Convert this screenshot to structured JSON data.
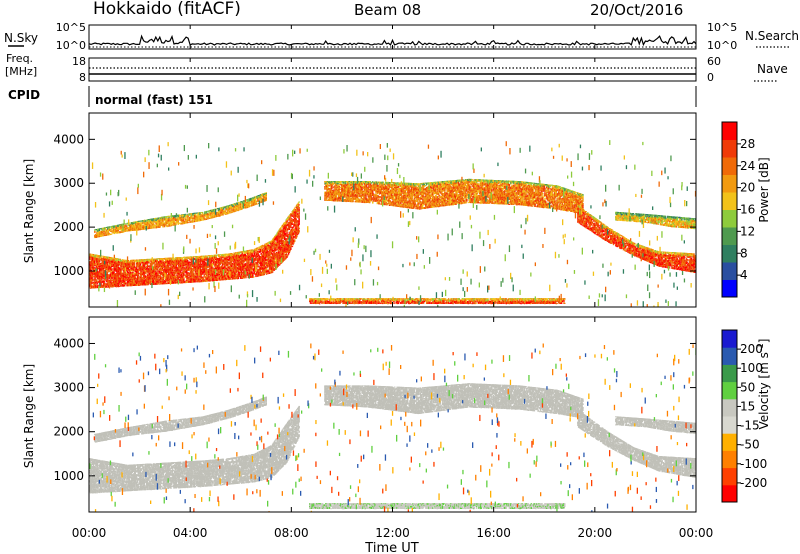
{
  "header": {
    "station": "Hokkaido (fitACF)",
    "beam": "Beam 08",
    "date": "20/Oct/2016"
  },
  "noise_panel": {
    "left_label": "N.Sky",
    "left_ticks": [
      "10^5",
      "10^0"
    ],
    "right_ticks": [
      "10^5",
      "10^0"
    ],
    "right_label": "N.Search"
  },
  "freq_panel": {
    "left_label_1": "Freq.",
    "left_label_2": "[MHz]",
    "left_ticks": [
      "18",
      "8"
    ],
    "right_ticks": [
      "60",
      "0"
    ],
    "right_label": "Nave"
  },
  "cpid_panel": {
    "label": "CPID",
    "mode_text": "normal (fast) 151"
  },
  "x_axis": {
    "ticks": [
      "00:00",
      "04:00",
      "08:00",
      "12:00",
      "16:00",
      "20:00",
      "00:00"
    ],
    "label": "Time UT"
  },
  "colors": {
    "power_scale": [
      "#0000ff",
      "#2a4fa0",
      "#2f7f60",
      "#4f9a4f",
      "#8ecb3c",
      "#f2c21a",
      "#f29a10",
      "#f06a08",
      "#f03a08",
      "#ff0000"
    ],
    "velocity_scale": [
      "#ff0000",
      "#ff4000",
      "#ff8000",
      "#ffb000",
      "#d8d8d0",
      "#c8c8c0",
      "#60d040",
      "#3a9a4a",
      "#2a5ab0",
      "#1a1ad0"
    ],
    "ground_scatter": "#c0c0b8"
  },
  "chart_data": [
    {
      "type": "heatmap",
      "name": "power-panel",
      "ylabel": "Slant Range [km]",
      "yticks": [
        1000,
        2000,
        3000,
        4000
      ],
      "ylim": [
        180,
        4600
      ],
      "xlim_hours": [
        0,
        24
      ],
      "colorbar": {
        "label": "Power [dB]",
        "ticks": [
          "4",
          "8",
          "12",
          "16",
          "20",
          "24",
          "28"
        ],
        "range": [
          0,
          32
        ]
      },
      "bands": [
        {
          "t": [
            0.0,
            1.5,
            3.0,
            4.5,
            5.5,
            6.5,
            7.2,
            7.8,
            8.3
          ],
          "lo": [
            600,
            650,
            700,
            750,
            800,
            850,
            950,
            1300,
            1900
          ],
          "hi": [
            1400,
            1250,
            1300,
            1350,
            1400,
            1500,
            1700,
            2200,
            2600
          ],
          "power": 28
        },
        {
          "t": [
            0.2,
            1.5,
            3.0,
            4.5,
            5.5,
            6.3,
            7.0
          ],
          "lo": [
            1750,
            1900,
            2000,
            2150,
            2300,
            2450,
            2600
          ],
          "hi": [
            1950,
            2100,
            2250,
            2350,
            2500,
            2650,
            2800
          ],
          "power": 22
        },
        {
          "t": [
            9.3,
            11.0,
            13.0,
            15.0,
            17.0,
            18.5,
            19.5
          ],
          "lo": [
            2600,
            2550,
            2400,
            2550,
            2500,
            2400,
            2300
          ],
          "hi": [
            3050,
            3050,
            3000,
            3100,
            3050,
            2950,
            2750
          ],
          "power": 24
        },
        {
          "t": [
            19.3,
            20.5,
            21.5,
            22.5,
            24.0
          ],
          "lo": [
            2100,
            1650,
            1350,
            1100,
            950
          ],
          "hi": [
            2500,
            2000,
            1650,
            1450,
            1400
          ],
          "power": 28
        },
        {
          "t": [
            20.8,
            22.0,
            23.0,
            24.0
          ],
          "lo": [
            2150,
            2100,
            2000,
            1950
          ],
          "hi": [
            2350,
            2300,
            2250,
            2200
          ],
          "power": 20
        },
        {
          "t": [
            8.7,
            18.8
          ],
          "lo": [
            250,
            250
          ],
          "hi": [
            380,
            380
          ],
          "power": 28
        }
      ]
    },
    {
      "type": "heatmap",
      "name": "velocity-panel",
      "ylabel": "Slant Range [km]",
      "yticks": [
        1000,
        2000,
        3000,
        4000
      ],
      "ylim": [
        180,
        4600
      ],
      "xlim_hours": [
        0,
        24
      ],
      "colorbar": {
        "label": "Velocity [m s-1]",
        "ticks": [
          "-200",
          "-100",
          "-50",
          "-15",
          "15",
          "50",
          "100",
          "200"
        ],
        "range": [
          -250,
          250
        ]
      },
      "bands": [
        {
          "t": [
            0.0,
            1.5,
            3.0,
            4.5,
            5.5,
            6.5,
            7.2,
            7.8,
            8.3
          ],
          "lo": [
            600,
            650,
            700,
            750,
            800,
            850,
            950,
            1300,
            1900
          ],
          "hi": [
            1400,
            1250,
            1300,
            1350,
            1400,
            1500,
            1700,
            2200,
            2600
          ],
          "velocity": 0
        },
        {
          "t": [
            0.2,
            1.5,
            3.0,
            4.5,
            5.5,
            6.3,
            7.0
          ],
          "lo": [
            1750,
            1900,
            2000,
            2150,
            2300,
            2450,
            2600
          ],
          "hi": [
            1950,
            2100,
            2250,
            2350,
            2500,
            2650,
            2800
          ],
          "velocity": 0
        },
        {
          "t": [
            9.3,
            11.0,
            13.0,
            15.0,
            17.0,
            18.5,
            19.5
          ],
          "lo": [
            2600,
            2550,
            2400,
            2550,
            2500,
            2400,
            2300
          ],
          "hi": [
            3050,
            3050,
            3000,
            3100,
            3050,
            2950,
            2750
          ],
          "velocity": 0
        },
        {
          "t": [
            19.3,
            20.5,
            21.5,
            22.5,
            24.0
          ],
          "lo": [
            2100,
            1650,
            1350,
            1100,
            950
          ],
          "hi": [
            2500,
            2000,
            1650,
            1450,
            1400
          ],
          "velocity": 0
        },
        {
          "t": [
            20.8,
            22.0,
            23.0,
            24.0
          ],
          "lo": [
            2150,
            2100,
            2000,
            1950
          ],
          "hi": [
            2350,
            2300,
            2250,
            2200
          ],
          "velocity": 0
        },
        {
          "t": [
            8.7,
            18.8
          ],
          "lo": [
            250,
            250
          ],
          "hi": [
            380,
            380
          ],
          "velocity": 40
        }
      ]
    }
  ]
}
